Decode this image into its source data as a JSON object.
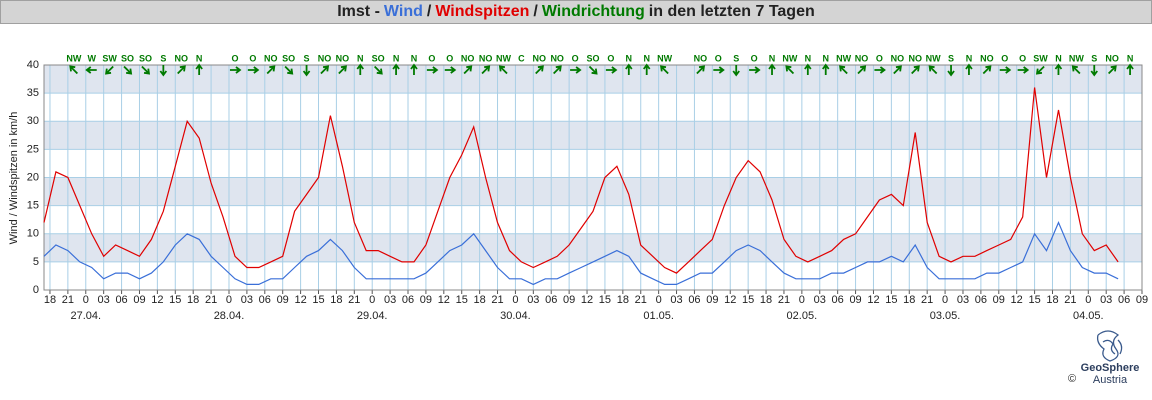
{
  "chart_data": {
    "type": "line",
    "title_prefix": "Imst -",
    "title_separator": "/",
    "direction_label": "Windrichtung",
    "direction_color": "#007a00",
    "title_suffix": "in den letzten 7 Tagen",
    "y_label": "Wind / Windspitzen in km/h",
    "x": [
      17,
      19,
      21,
      23,
      25,
      27,
      29,
      31,
      33,
      35,
      37,
      39,
      41,
      43,
      45,
      47,
      49,
      51,
      53,
      55,
      57,
      59,
      61,
      63,
      65,
      67,
      69,
      71,
      73,
      75,
      77,
      79,
      81,
      83,
      85,
      87,
      89,
      91,
      93,
      95,
      97,
      99,
      101,
      103,
      105,
      107,
      109,
      111,
      113,
      115,
      117,
      119,
      121,
      123,
      125,
      127,
      129,
      131,
      133,
      135,
      137,
      139,
      141,
      143,
      145,
      147,
      149,
      151,
      153,
      155,
      157,
      159,
      161,
      163,
      165,
      167,
      169,
      171,
      173,
      175,
      177,
      179,
      181,
      183,
      185,
      187,
      189,
      191,
      193,
      195,
      197
    ],
    "series": [
      {
        "name": "Wind",
        "color": "#3a6fd8",
        "values": [
          6,
          8,
          7,
          5,
          4,
          2,
          3,
          3,
          2,
          3,
          5,
          8,
          10,
          9,
          6,
          4,
          2,
          1,
          1,
          2,
          2,
          4,
          6,
          7,
          9,
          7,
          4,
          2,
          2,
          2,
          2,
          2,
          3,
          5,
          7,
          8,
          10,
          7,
          4,
          2,
          2,
          1,
          2,
          2,
          3,
          4,
          5,
          6,
          7,
          6,
          3,
          2,
          1,
          1,
          2,
          3,
          3,
          5,
          7,
          8,
          7,
          5,
          3,
          2,
          2,
          2,
          3,
          3,
          4,
          5,
          5,
          6,
          5,
          8,
          4,
          2,
          2,
          2,
          2,
          3,
          3,
          4,
          5,
          10,
          7,
          12,
          7,
          4,
          3,
          3,
          2
        ]
      },
      {
        "name": "Windspitzen",
        "color": "#e00000",
        "values": [
          12,
          21,
          20,
          15,
          10,
          6,
          8,
          7,
          6,
          9,
          14,
          22,
          30,
          27,
          19,
          13,
          6,
          4,
          4,
          5,
          6,
          14,
          17,
          20,
          31,
          22,
          12,
          7,
          7,
          6,
          5,
          5,
          8,
          14,
          20,
          24,
          29,
          20,
          12,
          7,
          5,
          4,
          5,
          6,
          8,
          11,
          14,
          20,
          22,
          17,
          8,
          6,
          4,
          3,
          5,
          7,
          9,
          15,
          20,
          23,
          21,
          16,
          9,
          6,
          5,
          6,
          7,
          9,
          10,
          13,
          16,
          17,
          15,
          28,
          12,
          6,
          5,
          6,
          6,
          7,
          8,
          9,
          13,
          36,
          20,
          32,
          20,
          10,
          7,
          8,
          5
        ]
      }
    ],
    "direction_x": [
      22,
      25,
      28,
      31,
      34,
      37,
      40,
      43,
      46,
      49,
      52,
      55,
      58,
      61,
      64,
      67,
      70,
      73,
      76,
      79,
      82,
      85,
      88,
      91,
      94,
      97,
      100,
      103,
      106,
      109,
      112,
      115,
      118,
      121,
      124,
      127,
      130,
      133,
      136,
      139,
      142,
      145,
      148,
      151,
      154,
      157,
      160,
      163,
      166,
      169,
      172,
      175,
      178,
      181,
      184,
      187,
      190,
      193,
      196,
      199
    ],
    "directions": [
      "NW",
      "W",
      "SW",
      "SO",
      "SO",
      "S",
      "NO",
      "N",
      null,
      "O",
      "O",
      "NO",
      "SO",
      "S",
      "NO",
      "NO",
      "N",
      "SO",
      "N",
      "N",
      "O",
      "O",
      "NO",
      "NO",
      "NW",
      "C",
      "NO",
      "NO",
      "O",
      "SO",
      "O",
      "N",
      "N",
      "NW",
      null,
      "NO",
      "O",
      "S",
      "O",
      "N",
      "NW",
      "N",
      "N",
      "NW",
      "NO",
      "O",
      "NO",
      "NO",
      "NW",
      "S",
      "N",
      "NO",
      "O",
      "O",
      "SW",
      "N",
      "NW",
      "S",
      "NO",
      "N"
    ],
    "xlim": [
      17,
      201
    ],
    "xticks": [
      18,
      21,
      {
        "value": 24,
        "label": "0"
      },
      {
        "value": 27,
        "label": "03"
      },
      {
        "value": 30,
        "label": "06"
      },
      {
        "value": 33,
        "label": "09"
      },
      {
        "value": 36,
        "label": "12"
      },
      {
        "value": 39,
        "label": "15"
      },
      {
        "value": 42,
        "label": "18"
      },
      {
        "value": 45,
        "label": "21"
      },
      {
        "value": 48,
        "label": "0"
      },
      {
        "value": 51,
        "label": "03"
      },
      {
        "value": 54,
        "label": "06"
      },
      {
        "value": 57,
        "label": "09"
      },
      {
        "value": 60,
        "label": "12"
      },
      {
        "value": 63,
        "label": "15"
      },
      {
        "value": 66,
        "label": "18"
      },
      {
        "value": 69,
        "label": "21"
      },
      {
        "value": 72,
        "label": "0"
      },
      {
        "value": 75,
        "label": "03"
      },
      {
        "value": 78,
        "label": "06"
      },
      {
        "value": 81,
        "label": "09"
      },
      {
        "value": 84,
        "label": "12"
      },
      {
        "value": 87,
        "label": "15"
      },
      {
        "value": 90,
        "label": "18"
      },
      {
        "value": 93,
        "label": "21"
      },
      {
        "value": 96,
        "label": "0"
      },
      {
        "value": 99,
        "label": "03"
      },
      {
        "value": 102,
        "label": "06"
      },
      {
        "value": 105,
        "label": "09"
      },
      {
        "value": 108,
        "label": "12"
      },
      {
        "value": 111,
        "label": "15"
      },
      {
        "value": 114,
        "label": "18"
      },
      {
        "value": 117,
        "label": "21"
      },
      {
        "value": 120,
        "label": "0"
      },
      {
        "value": 123,
        "label": "03"
      },
      {
        "value": 126,
        "label": "06"
      },
      {
        "value": 129,
        "label": "09"
      },
      {
        "value": 132,
        "label": "12"
      },
      {
        "value": 135,
        "label": "15"
      },
      {
        "value": 138,
        "label": "18"
      },
      {
        "value": 141,
        "label": "21"
      },
      {
        "value": 144,
        "label": "0"
      },
      {
        "value": 147,
        "label": "03"
      },
      {
        "value": 150,
        "label": "06"
      },
      {
        "value": 153,
        "label": "09"
      },
      {
        "value": 156,
        "label": "12"
      },
      {
        "value": 159,
        "label": "15"
      },
      {
        "value": 162,
        "label": "18"
      },
      {
        "value": 165,
        "label": "21"
      },
      {
        "value": 168,
        "label": "0"
      },
      {
        "value": 171,
        "label": "03"
      },
      {
        "value": 174,
        "label": "06"
      },
      {
        "value": 177,
        "label": "09"
      },
      {
        "value": 180,
        "label": "12"
      },
      {
        "value": 183,
        "label": "15"
      },
      {
        "value": 186,
        "label": "18"
      },
      {
        "value": 189,
        "label": "21"
      },
      {
        "value": 192,
        "label": "0"
      },
      {
        "value": 195,
        "label": "03"
      },
      {
        "value": 198,
        "label": "06"
      },
      {
        "value": 201,
        "label": "09"
      }
    ],
    "date_labels": [
      {
        "value": 24,
        "label": "27.04."
      },
      {
        "value": 48,
        "label": "28.04."
      },
      {
        "value": 72,
        "label": "29.04."
      },
      {
        "value": 96,
        "label": "30.04."
      },
      {
        "value": 120,
        "label": "01.05."
      },
      {
        "value": 144,
        "label": "02.05."
      },
      {
        "value": 168,
        "label": "03.05."
      },
      {
        "value": 192,
        "label": "04.05."
      }
    ],
    "ylim": [
      0,
      40
    ],
    "yticks": [
      0,
      5,
      10,
      15,
      20,
      25,
      30,
      35,
      40
    ],
    "grid": true,
    "grid_color": "#a9cfe6",
    "band_color": "#dfe5ef"
  },
  "footer": {
    "brand": "GeoSphere",
    "sub": "Austria",
    "copyright": "©"
  }
}
